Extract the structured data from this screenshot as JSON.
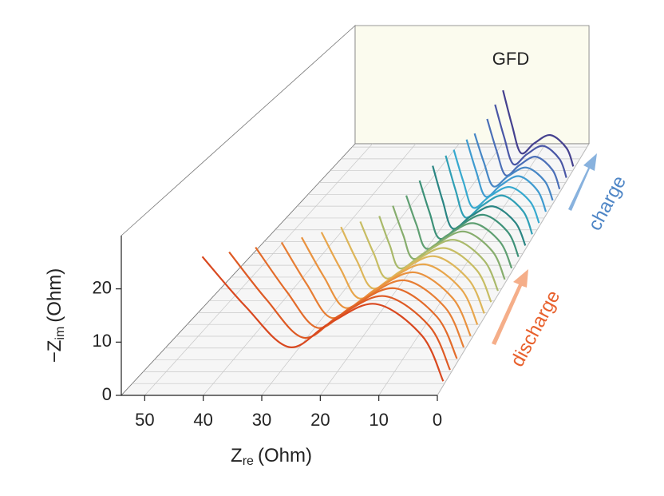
{
  "chart_data": {
    "type": "line3d",
    "label": "GFD",
    "xlabel": {
      "symbol": "Z",
      "subscript": "re",
      "unit": "(Ohm)"
    },
    "ylabel": {
      "symbol": "−Z",
      "subscript": "im",
      "unit": "(Ohm)"
    },
    "xlim": [
      54,
      0
    ],
    "xticks": [
      50,
      40,
      30,
      20,
      10,
      0
    ],
    "ylim": [
      0,
      30
    ],
    "yticks": [
      0,
      10,
      20
    ],
    "grid": true,
    "annotations": [
      "discharge",
      "charge"
    ],
    "series": [
      {
        "color": "#d9481f",
        "x": [
          0.3,
          4,
          12,
          20,
          27,
          34.5,
          42
        ],
        "values": [
          0.3,
          9,
          15,
          11.3,
          6.8,
          14.5,
          24
        ]
      },
      {
        "color": "#de5a24",
        "x": [
          0.3,
          3.9,
          11.7,
          19.5,
          26,
          32.5,
          39
        ],
        "values": [
          0.3,
          8.7,
          14.5,
          10.9,
          6.5,
          13.9,
          23
        ]
      },
      {
        "color": "#e36b2a",
        "x": [
          0.3,
          3.8,
          11.3,
          18.8,
          25,
          30.5,
          36
        ],
        "values": [
          0.3,
          8.4,
          14,
          10.5,
          6.3,
          13.4,
          22
        ]
      },
      {
        "color": "#e77e34",
        "x": [
          0.3,
          3.6,
          10.8,
          18,
          24,
          28.5,
          33
        ],
        "values": [
          0.3,
          8.1,
          13.5,
          10.1,
          6.1,
          12.8,
          21
        ]
      },
      {
        "color": "#e9923f",
        "x": [
          0.3,
          3.5,
          10.4,
          17.3,
          23,
          27,
          31
        ],
        "values": [
          0.3,
          7.8,
          13,
          9.8,
          5.9,
          12.2,
          20
        ]
      },
      {
        "color": "#e8a64c",
        "x": [
          0.3,
          3.3,
          9.9,
          16.5,
          22,
          25.5,
          29
        ],
        "values": [
          0.3,
          7.5,
          12.5,
          9.4,
          5.6,
          11.6,
          19
        ]
      },
      {
        "color": "#ddb65a",
        "x": [
          0.3,
          3.2,
          9.5,
          15.8,
          21,
          24,
          27
        ],
        "values": [
          0.3,
          7.2,
          12,
          9,
          5.4,
          11,
          18
        ]
      },
      {
        "color": "#c7bd63",
        "x": [
          0.3,
          3,
          9,
          15,
          20,
          22.5,
          25
        ],
        "values": [
          0.3,
          6.9,
          11.5,
          8.6,
          5.2,
          10.5,
          17
        ]
      },
      {
        "color": "#a9b96a",
        "x": [
          0.3,
          2.9,
          8.6,
          14.3,
          19,
          21,
          23
        ],
        "values": [
          0.3,
          6.6,
          11,
          8.3,
          5,
          9.9,
          16
        ]
      },
      {
        "color": "#86ad6d",
        "x": [
          0.3,
          2.7,
          8.1,
          13.5,
          18,
          20,
          22
        ],
        "values": [
          0.3,
          6.3,
          10.5,
          7.9,
          4.7,
          9.8,
          16
        ]
      },
      {
        "color": "#5f9f72",
        "x": [
          0.3,
          2.6,
          7.7,
          12.8,
          17,
          19,
          21
        ],
        "values": [
          0.3,
          6,
          10,
          7.5,
          4.5,
          9.7,
          16
        ]
      },
      {
        "color": "#3d9178",
        "x": [
          0.3,
          2.4,
          7.2,
          12,
          16,
          18,
          20
        ],
        "values": [
          0.3,
          5.7,
          9.5,
          7.1,
          4.3,
          10,
          17
        ]
      },
      {
        "color": "#2a8583",
        "x": [
          0.3,
          2.3,
          6.8,
          11.3,
          15,
          17,
          19
        ],
        "values": [
          0.3,
          5.4,
          9,
          6.8,
          4.1,
          10.3,
          18
        ]
      },
      {
        "color": "#2f9fb5",
        "x": [
          0.3,
          2.1,
          6.3,
          10.5,
          14,
          16,
          18
        ],
        "values": [
          0.3,
          5.4,
          9,
          6.8,
          4.1,
          10.3,
          18
        ]
      },
      {
        "color": "#37a9cf",
        "x": [
          0.3,
          2.1,
          6.3,
          10.5,
          14,
          16,
          18
        ],
        "values": [
          0.3,
          5.1,
          8.5,
          6.4,
          3.8,
          9.7,
          17
        ]
      },
      {
        "color": "#3f9bd0",
        "x": [
          0.3,
          2,
          5.9,
          9.8,
          13,
          15,
          17
        ],
        "values": [
          0.3,
          5.1,
          8.5,
          6.4,
          3.8,
          9.7,
          17
        ]
      },
      {
        "color": "#4686c5",
        "x": [
          0.3,
          2,
          5.9,
          9.8,
          13,
          15,
          17
        ],
        "values": [
          0.3,
          4.8,
          8,
          6,
          3.6,
          9.2,
          16
        ]
      },
      {
        "color": "#4b6fb7",
        "x": [
          0.3,
          1.8,
          5.4,
          9,
          12,
          14,
          16
        ],
        "values": [
          0.3,
          4.8,
          8,
          6,
          3.6,
          9.6,
          17
        ]
      },
      {
        "color": "#4a57a6",
        "x": [
          0.3,
          1.8,
          5.4,
          9,
          12,
          14,
          16
        ],
        "values": [
          0.3,
          4.8,
          8,
          6,
          3.6,
          10.1,
          18
        ]
      },
      {
        "color": "#45418f",
        "x": [
          0.3,
          1.8,
          5.4,
          9,
          12,
          14,
          16
        ],
        "values": [
          0.3,
          4.8,
          8,
          6,
          3.6,
          10.5,
          19
        ]
      }
    ]
  }
}
